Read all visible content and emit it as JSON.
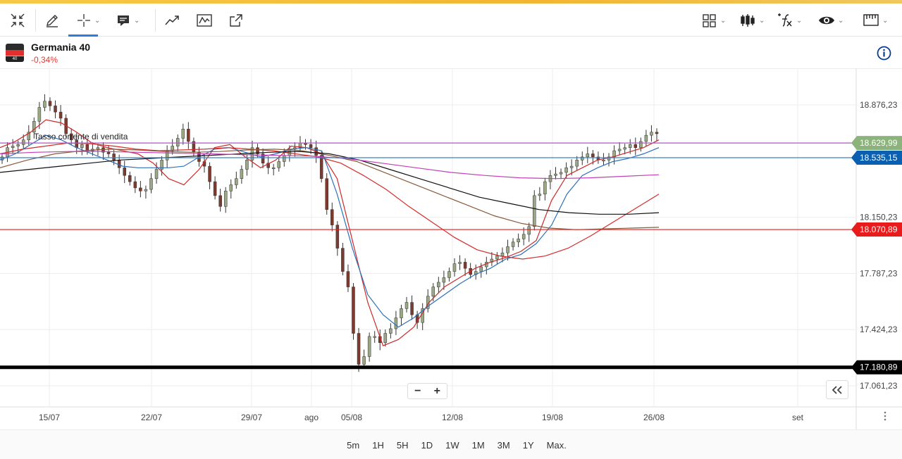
{
  "colors": {
    "accent": "#2a7de1",
    "up_candle": "#9aa884",
    "down_candle": "#7d3a2e",
    "price_line": "#8db37c",
    "level_blue": "#0b5fb0",
    "level_red": "#e81c1c",
    "level_black": "#000000",
    "negative": "#e53935"
  },
  "toolbar": {
    "icons": [
      "collapse-icon",
      "pencil-icon",
      "crosshair-icon",
      "comment-icon",
      "trend-icon",
      "indicator-wave-icon",
      "export-icon",
      "layout-grid-icon",
      "candles-icon",
      "fx-icon",
      "eye-icon",
      "ruler-icon"
    ]
  },
  "instrument": {
    "name": "Germania 40",
    "change": "-0,34%",
    "flag_label": "40"
  },
  "bottom": {
    "ranges": [
      "5m",
      "1H",
      "5H",
      "1D",
      "1W",
      "1M",
      "3M",
      "1Y",
      "Max."
    ]
  },
  "chart_data": {
    "type": "line",
    "x_tick_labels": [
      "15/07",
      "22/07",
      "29/07",
      "ago",
      "05/08",
      "12/08",
      "19/08",
      "26/08",
      "set"
    ],
    "y_tick_labels": [
      "18.876,23",
      "18.150,23",
      "17.787,23",
      "17.424,23",
      "17.061,23"
    ],
    "y_ticks": [
      18876.23,
      18150.23,
      17787.23,
      17424.23,
      17061.23
    ],
    "ylim": [
      16980,
      19100
    ],
    "annotation": "Tasso corrente di vendita",
    "price_labels": [
      {
        "text": "18.629,99",
        "value": 18629.99,
        "color": "#8db37c"
      },
      {
        "text": "18.535,15",
        "value": 18535.15,
        "color": "#0b5fb0"
      },
      {
        "text": "18.070,89",
        "value": 18070.89,
        "color": "#e81c1c"
      },
      {
        "text": "17.180,89",
        "value": 17180.89,
        "color": "#000000"
      }
    ],
    "horizontal_levels": [
      {
        "value": 18629.99,
        "color": "#b054c7"
      },
      {
        "value": 18535.15,
        "color": "#3f80c0"
      },
      {
        "value": 18070.89,
        "color": "#e81c1c"
      },
      {
        "value": 17180.89,
        "color": "#000000"
      }
    ],
    "candle_closes": [
      18540,
      18600,
      18610,
      18620,
      18650,
      18700,
      18770,
      18860,
      18900,
      18870,
      18830,
      18790,
      18690,
      18650,
      18600,
      18620,
      18580,
      18590,
      18600,
      18570,
      18560,
      18520,
      18470,
      18420,
      18380,
      18340,
      18320,
      18330,
      18400,
      18460,
      18520,
      18580,
      18610,
      18660,
      18720,
      18640,
      18570,
      18510,
      18480,
      18380,
      18290,
      18220,
      18320,
      18360,
      18400,
      18460,
      18520,
      18600,
      18560,
      18500,
      18470,
      18470,
      18510,
      18550,
      18590,
      18600,
      18630,
      18620,
      18600,
      18550,
      18400,
      18200,
      18100,
      17950,
      17800,
      17700,
      17400,
      17200,
      17250,
      17380,
      17380,
      17340,
      17400,
      17430,
      17500,
      17560,
      17600,
      17520,
      17470,
      17560,
      17640,
      17700,
      17730,
      17760,
      17800,
      17850,
      17860,
      17820,
      17780,
      17800,
      17830,
      17860,
      17880,
      17900,
      17920,
      17960,
      17990,
      18010,
      18040,
      18090,
      18290,
      18300,
      18380,
      18420,
      18430,
      18440,
      18470,
      18480,
      18520,
      18540,
      18560,
      18540,
      18520,
      18520,
      18540,
      18580,
      18590,
      18600,
      18620,
      18600,
      18640,
      18680,
      18700,
      18690
    ],
    "series": [
      {
        "name": "",
        "color": "#cc2a2a",
        "values": [
          18600,
          18640,
          18700,
          18780,
          18760,
          18700,
          18630,
          18600,
          18580,
          18560,
          18500,
          18400,
          18360,
          18460,
          18600,
          18620,
          18540,
          18470,
          18520,
          18610,
          18600,
          18560,
          18400,
          18000,
          17600,
          17320,
          17360,
          17440,
          17600,
          17700,
          17760,
          17820,
          17860,
          17890,
          17930,
          18000,
          18260,
          18420,
          18470,
          18520,
          18540,
          18570,
          18600,
          18650
        ]
      },
      {
        "name": "",
        "color": "#2e70b8",
        "values": [
          18520,
          18560,
          18620,
          18680,
          18650,
          18600,
          18560,
          18520,
          18480,
          18470,
          18470,
          18470,
          18480,
          18540,
          18590,
          18600,
          18570,
          18540,
          18560,
          18590,
          18600,
          18580,
          18300,
          17950,
          17650,
          17520,
          17440,
          17500,
          17580,
          17650,
          17720,
          17780,
          17820,
          17880,
          17910,
          17980,
          18100,
          18300,
          18420,
          18470,
          18510,
          18530,
          18560,
          18600
        ]
      },
      {
        "name": "",
        "color": "#d52b2b",
        "values": [
          18560,
          18590,
          18610,
          18630,
          18625,
          18610,
          18590,
          18580,
          18585,
          18590,
          18600,
          18590,
          18580,
          18560,
          18540,
          18500,
          18420,
          18330,
          18220,
          18120,
          18020,
          17940,
          17900,
          17880,
          17900,
          17950,
          18030,
          18120,
          18210,
          18300
        ]
      },
      {
        "name": "",
        "color": "#8a5a3c",
        "values": [
          18470,
          18520,
          18560,
          18580,
          18590,
          18585,
          18575,
          18570,
          18575,
          18585,
          18590,
          18580,
          18550,
          18510,
          18440,
          18370,
          18300,
          18230,
          18160,
          18110,
          18080,
          18070,
          18075,
          18080,
          18085
        ]
      },
      {
        "name": "",
        "color": "#111111",
        "values": [
          18440,
          18460,
          18480,
          18500,
          18520,
          18530,
          18540,
          18550,
          18560,
          18570,
          18575,
          18560,
          18520,
          18460,
          18400,
          18340,
          18280,
          18240,
          18200,
          18180,
          18170,
          18170,
          18180
        ]
      },
      {
        "name": "",
        "color": "#c23fb8",
        "values": [
          18560,
          18570,
          18575,
          18575,
          18570,
          18565,
          18560,
          18555,
          18550,
          18545,
          18530,
          18500,
          18470,
          18440,
          18420,
          18405,
          18400,
          18405,
          18415,
          18425
        ]
      }
    ]
  }
}
